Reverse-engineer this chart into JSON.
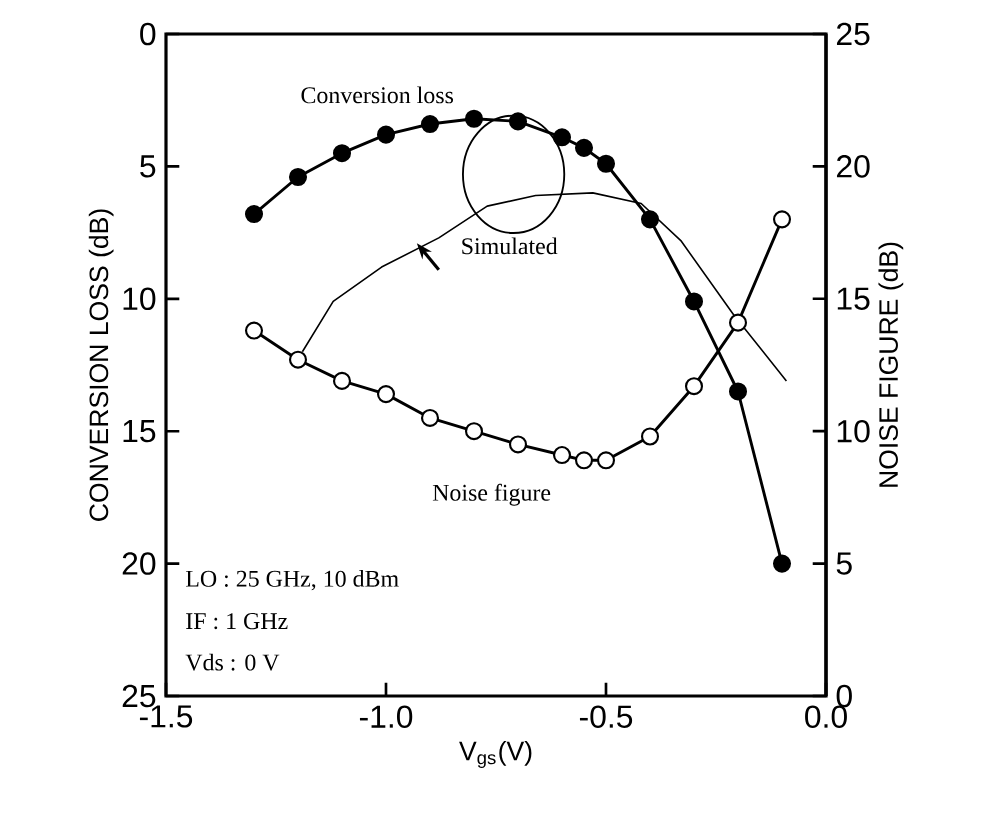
{
  "chart_data": {
    "type": "line",
    "xlabel": "V$_{gs}$(V)",
    "ylabel": "CONVERSION LOSS (dB)",
    "y2label": "NOISE FIGURE (dB)",
    "xlim": [
      -1.5,
      0
    ],
    "xticks": [
      -1.5,
      {
        "value": -1.0,
        "label": "-1.0"
      },
      -0.5,
      {
        "value": 0.0,
        "label": "0.0"
      }
    ],
    "ylim": [
      25,
      0
    ],
    "yticks": [
      0,
      5,
      10,
      15,
      20,
      25
    ],
    "y2lim": [
      0,
      25
    ],
    "y2ticks": [
      0,
      5,
      10,
      15,
      20,
      25
    ],
    "grid": false,
    "line_style": "solid",
    "series": [
      {
        "name": "Conversion loss",
        "color": "#000000",
        "marker": "circle",
        "x": [
          -1.3,
          -1.2,
          -1.1,
          -1.0,
          -0.9,
          -0.8,
          -0.7,
          -0.6,
          -0.55,
          -0.5,
          -0.4,
          -0.3,
          -0.2,
          -0.1
        ],
        "values": [
          6.8,
          5.4,
          4.5,
          3.8,
          3.4,
          3.2,
          3.3,
          3.9,
          4.3,
          4.9,
          7.0,
          10.1,
          13.5,
          20.0
        ]
      },
      {
        "name": "Simulated",
        "color": "#000000",
        "marker": "none",
        "x": [
          -1.19,
          -1.12,
          -1.01,
          -0.88,
          -0.77,
          -0.66,
          -0.53,
          -0.42,
          -0.33,
          -0.21,
          -0.09
        ],
        "values": [
          12.0,
          10.1,
          8.8,
          7.7,
          6.5,
          6.1,
          6.0,
          6.4,
          7.8,
          10.6,
          13.1
        ]
      },
      {
        "name": "Noise figure",
        "color": "#000000",
        "marker": "circle",
        "axis": "y2",
        "x": [
          -1.3,
          -1.2,
          -1.1,
          -1.0,
          -0.9,
          -0.8,
          -0.7,
          -0.6,
          -0.55,
          -0.5,
          -0.4,
          -0.3,
          -0.2,
          -0.1
        ],
        "values": [
          13.8,
          12.7,
          11.9,
          11.4,
          10.5,
          10.0,
          9.5,
          9.1,
          8.9,
          8.9,
          9.8,
          11.7,
          14.1,
          18.0
        ]
      }
    ],
    "annotations": [
      "LO : 25 GHz, 10 dBm",
      "IF : 1 GHz",
      "Vds : 0 V"
    ]
  }
}
